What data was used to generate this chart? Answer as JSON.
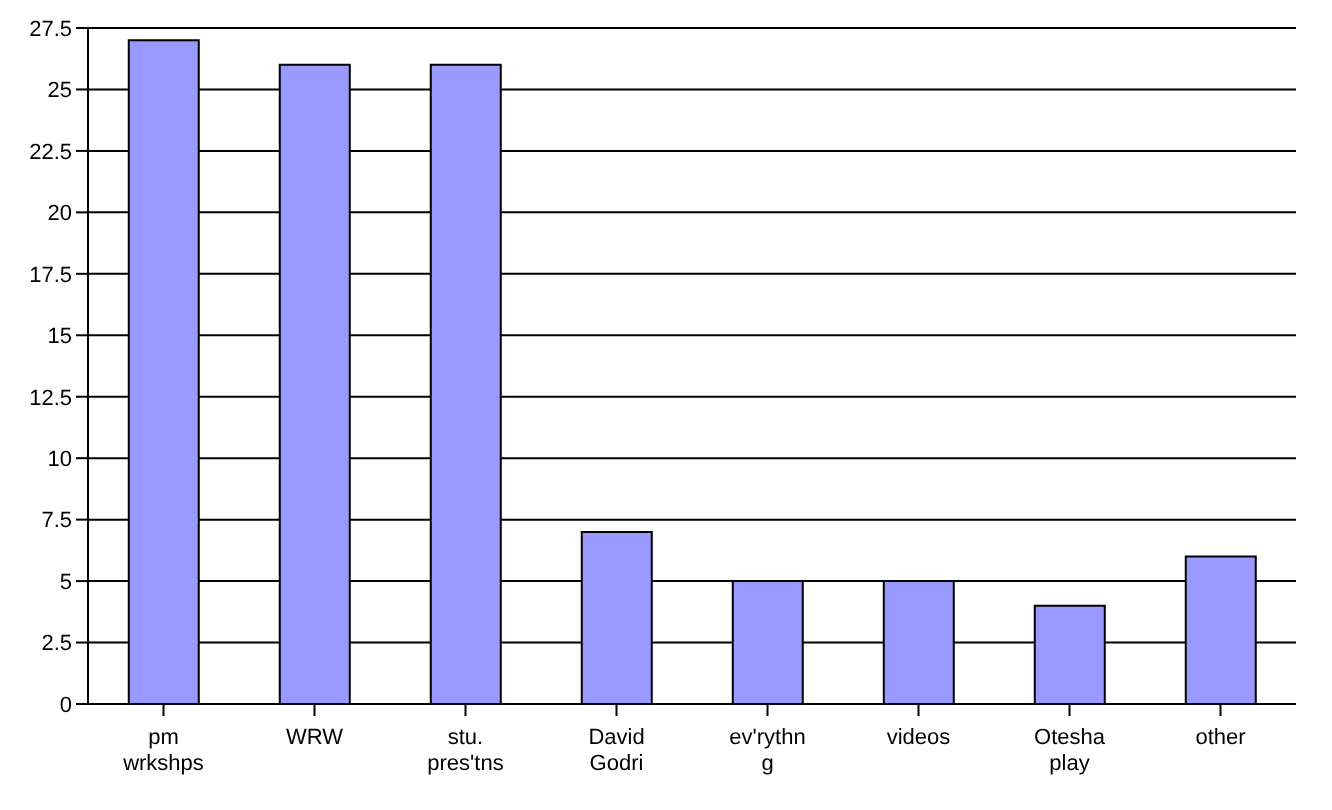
{
  "chart_data": {
    "type": "bar",
    "categories": [
      "pm wrkshps",
      "WRW",
      "stu. pres'tns",
      "David Godri",
      "ev'rythng",
      "videos",
      "Otesha play",
      "other"
    ],
    "values": [
      27,
      26,
      26,
      7,
      5,
      5,
      4,
      6
    ],
    "color": "#9999ff",
    "ylim": [
      0,
      27.5
    ],
    "yticks": [
      0,
      2.5,
      5,
      7.5,
      10,
      12.5,
      15,
      17.5,
      20,
      22.5,
      25,
      27.5
    ],
    "grid": "y",
    "legend": false
  }
}
